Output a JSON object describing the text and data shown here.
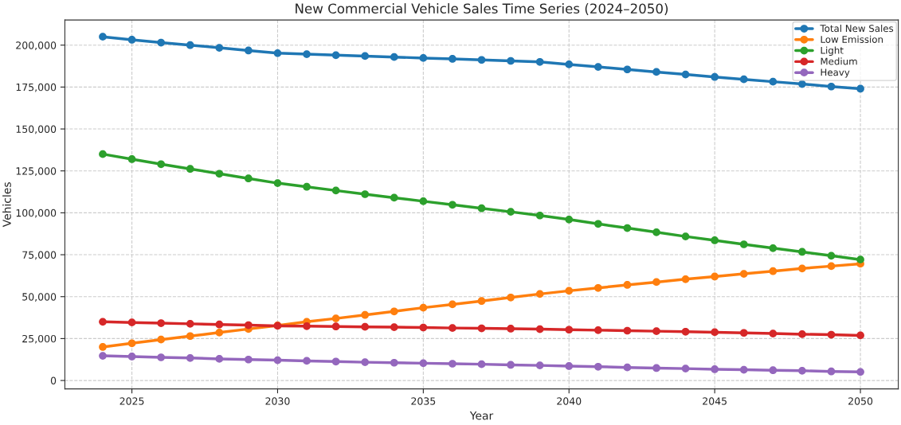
{
  "chart_data": {
    "type": "line",
    "title": "New Commercial Vehicle Sales Time Series (2024–2050)",
    "xlabel": "Year",
    "ylabel": "Vehicles",
    "x": [
      2024,
      2025,
      2026,
      2027,
      2028,
      2029,
      2030,
      2031,
      2032,
      2033,
      2034,
      2035,
      2036,
      2037,
      2038,
      2039,
      2040,
      2041,
      2042,
      2043,
      2044,
      2045,
      2046,
      2047,
      2048,
      2049,
      2050
    ],
    "series": [
      {
        "name": "Total New Sales",
        "color": "#1f77b4",
        "values": [
          205000,
          203200,
          201500,
          200000,
          198400,
          196800,
          195200,
          194600,
          194000,
          193500,
          192900,
          192300,
          191800,
          191200,
          190600,
          190000,
          188500,
          187000,
          185500,
          184000,
          182500,
          181000,
          179600,
          178200,
          176800,
          175300,
          174000
        ]
      },
      {
        "name": "Low Emission",
        "color": "#ff7f0e",
        "values": [
          20000,
          22200,
          24400,
          26500,
          28600,
          30700,
          32800,
          35000,
          37000,
          39100,
          41200,
          43400,
          45400,
          47400,
          49500,
          51600,
          53500,
          55200,
          57000,
          58700,
          60400,
          62000,
          63600,
          65200,
          66800,
          68200,
          69600
        ]
      },
      {
        "name": "Light",
        "color": "#2ca02c",
        "values": [
          135000,
          132000,
          129000,
          126200,
          123300,
          120500,
          117700,
          115500,
          113300,
          111100,
          109000,
          106900,
          104800,
          102700,
          100600,
          98400,
          96000,
          93400,
          90900,
          88400,
          85900,
          83600,
          81200,
          78900,
          76700,
          74400,
          72100
        ]
      },
      {
        "name": "Medium",
        "color": "#d62728",
        "values": [
          35000,
          34600,
          34200,
          33800,
          33400,
          33000,
          32600,
          32400,
          32200,
          32000,
          31800,
          31600,
          31300,
          31100,
          30900,
          30600,
          30300,
          30000,
          29700,
          29400,
          29100,
          28800,
          28400,
          28000,
          27600,
          27300,
          26900
        ]
      },
      {
        "name": "Heavy",
        "color": "#9467bd",
        "values": [
          14700,
          14300,
          13800,
          13400,
          12900,
          12500,
          12100,
          11700,
          11300,
          10900,
          10600,
          10300,
          10000,
          9700,
          9300,
          9000,
          8600,
          8200,
          7800,
          7400,
          7100,
          6700,
          6400,
          6100,
          5800,
          5400,
          5100
        ]
      }
    ],
    "xlim": [
      2022.7,
      2051.3
    ],
    "ylim": [
      -5000,
      215000
    ],
    "xticks": [
      2025,
      2030,
      2035,
      2040,
      2045,
      2050
    ],
    "yticks": [
      {
        "value": 0,
        "label": "0"
      },
      {
        "value": 25000,
        "label": "25,000"
      },
      {
        "value": 50000,
        "label": "50,000"
      },
      {
        "value": 75000,
        "label": "75,000"
      },
      {
        "value": 100000,
        "label": "100,000"
      },
      {
        "value": 125000,
        "label": "125,000"
      },
      {
        "value": 150000,
        "label": "150,000"
      },
      {
        "value": 175000,
        "label": "175,000"
      },
      {
        "value": 200000,
        "label": "200,000"
      }
    ],
    "grid": true,
    "legend": "top right",
    "marker": "circle",
    "line_style": "solid"
  }
}
